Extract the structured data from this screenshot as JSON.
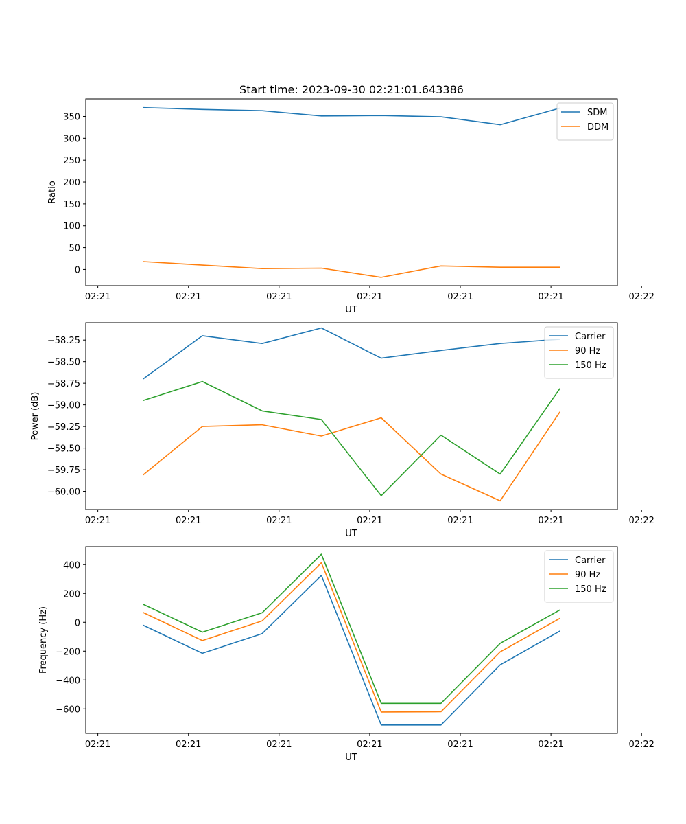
{
  "chart_data": [
    {
      "type": "line",
      "title": "Start time: 2023-09-30 02:21:01.643386",
      "xlabel": "UT",
      "ylabel": "Ratio",
      "ylim": [
        -37,
        390
      ],
      "yticks": [
        0,
        50,
        100,
        150,
        200,
        250,
        300,
        350
      ],
      "ytick_labels": [
        "0",
        "50",
        "100",
        "150",
        "200",
        "250",
        "300",
        "350"
      ],
      "xlim": [
        -0.2,
        8.6
      ],
      "xticks": [
        0,
        1.5,
        3,
        4.5,
        6,
        7.5,
        9
      ],
      "xtick_labels": [
        "02:21",
        "02:21",
        "02:21",
        "02:21",
        "02:21",
        "02:21",
        "02:22"
      ],
      "x": [
        0.75,
        1.73,
        2.72,
        3.7,
        4.69,
        5.68,
        6.66,
        7.65
      ],
      "legend": "top-right",
      "series": [
        {
          "name": "SDM",
          "color": "#1f77b4",
          "values": [
            370,
            366,
            363,
            351,
            352,
            349,
            331,
            369
          ]
        },
        {
          "name": "DDM",
          "color": "#ff7f0e",
          "values": [
            18,
            10,
            2,
            3,
            -18,
            8,
            5,
            5
          ]
        }
      ]
    },
    {
      "type": "line",
      "title": "",
      "xlabel": "UT",
      "ylabel": "Power (dB)",
      "ylim": [
        -60.21,
        -58.05
      ],
      "yticks": [
        -60.0,
        -59.75,
        -59.5,
        -59.25,
        -59.0,
        -58.75,
        -58.5,
        -58.25
      ],
      "ytick_labels": [
        "−60.00",
        "−59.75",
        "−59.50",
        "−59.25",
        "−59.00",
        "−58.75",
        "−58.50",
        "−58.25"
      ],
      "xlim": [
        -0.2,
        8.6
      ],
      "xticks": [
        0,
        1.5,
        3,
        4.5,
        6,
        7.5,
        9
      ],
      "xtick_labels": [
        "02:21",
        "02:21",
        "02:21",
        "02:21",
        "02:21",
        "02:21",
        "02:22"
      ],
      "x": [
        0.75,
        1.73,
        2.72,
        3.7,
        4.69,
        5.68,
        6.66,
        7.65
      ],
      "legend": "top-right",
      "series": [
        {
          "name": "Carrier",
          "color": "#1f77b4",
          "values": [
            -58.7,
            -58.2,
            -58.29,
            -58.11,
            -58.46,
            -58.37,
            -58.29,
            -58.24
          ]
        },
        {
          "name": "90 Hz",
          "color": "#ff7f0e",
          "values": [
            -59.81,
            -59.25,
            -59.23,
            -59.36,
            -59.15,
            -59.8,
            -60.11,
            -59.08
          ]
        },
        {
          "name": "150 Hz",
          "color": "#2ca02c",
          "values": [
            -58.95,
            -58.73,
            -59.07,
            -59.17,
            -60.05,
            -59.35,
            -59.8,
            -58.81
          ]
        }
      ]
    },
    {
      "type": "line",
      "title": "",
      "xlabel": "UT",
      "ylabel": "Frequency (Hz)",
      "ylim": [
        -770,
        525
      ],
      "yticks": [
        -600,
        -400,
        -200,
        0,
        200,
        400
      ],
      "ytick_labels": [
        "−600",
        "−400",
        "−200",
        "0",
        "200",
        "400"
      ],
      "xlim": [
        -0.2,
        8.6
      ],
      "xticks": [
        0,
        1.5,
        3,
        4.5,
        6,
        7.5,
        9
      ],
      "xtick_labels": [
        "02:21",
        "02:21",
        "02:21",
        "02:21",
        "02:21",
        "02:21",
        "02:22"
      ],
      "x": [
        0.75,
        1.73,
        2.72,
        3.7,
        4.69,
        5.68,
        6.66,
        7.65
      ],
      "legend": "top-right",
      "series": [
        {
          "name": "Carrier",
          "color": "#1f77b4",
          "values": [
            -20,
            -215,
            -78,
            325,
            -712,
            -712,
            -295,
            -60
          ]
        },
        {
          "name": "90 Hz",
          "color": "#ff7f0e",
          "values": [
            68,
            -127,
            10,
            413,
            -622,
            -620,
            -205,
            28
          ]
        },
        {
          "name": "150 Hz",
          "color": "#2ca02c",
          "values": [
            125,
            -68,
            66,
            472,
            -562,
            -562,
            -146,
            86
          ]
        }
      ]
    }
  ]
}
